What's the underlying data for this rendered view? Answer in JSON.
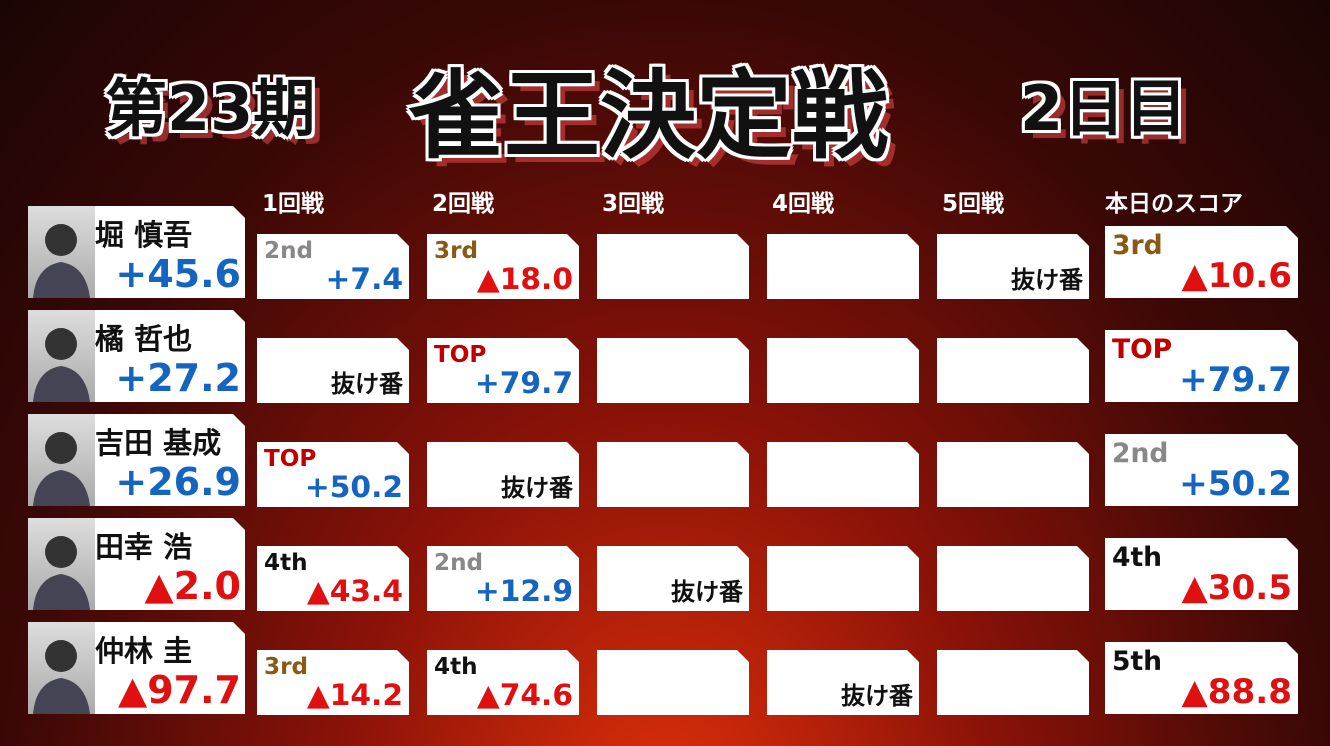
{
  "header": {
    "title_left": "第23期",
    "title_main": "雀王決定戦",
    "title_right": "2日目"
  },
  "table": {
    "columns": [
      "1回戦",
      "2回戦",
      "3回戦",
      "4回戦",
      "5回戦",
      "本日のスコア"
    ],
    "rows": [
      {
        "name": "堀 慎吾",
        "total": "+45.6",
        "total_color": "#1565c0",
        "games": [
          {
            "rank": "2nd",
            "rank_color": "#888888",
            "score": "+7.4",
            "score_color": "#1565c0"
          },
          {
            "rank": "3rd",
            "rank_color": "#8a5a14",
            "score": "▲18.0",
            "score_color": "#e01010"
          },
          null,
          null,
          {
            "note": "抜け番"
          }
        ],
        "today": {
          "rank": "3rd",
          "rank_color": "#8a5a14",
          "score": "▲10.6",
          "score_color": "#e01010"
        }
      },
      {
        "name": "橘 哲也",
        "total": "+27.2",
        "total_color": "#1565c0",
        "games": [
          {
            "note": "抜け番"
          },
          {
            "rank": "TOP",
            "rank_color": "#c00000",
            "score": "+79.7",
            "score_color": "#1565c0"
          },
          null,
          null,
          null
        ],
        "today": {
          "rank": "TOP",
          "rank_color": "#c00000",
          "score": "+79.7",
          "score_color": "#1565c0"
        }
      },
      {
        "name": "吉田 基成",
        "total": "+26.9",
        "total_color": "#1565c0",
        "games": [
          {
            "rank": "TOP",
            "rank_color": "#c00000",
            "score": "+50.2",
            "score_color": "#1565c0"
          },
          {
            "note": "抜け番"
          },
          null,
          null,
          null
        ],
        "today": {
          "rank": "2nd",
          "rank_color": "#888888",
          "score": "+50.2",
          "score_color": "#1565c0"
        }
      },
      {
        "name": "田幸 浩",
        "total": "▲2.0",
        "total_color": "#e01010",
        "games": [
          {
            "rank": "4th",
            "rank_color": "#111111",
            "score": "▲43.4",
            "score_color": "#e01010"
          },
          {
            "rank": "2nd",
            "rank_color": "#888888",
            "score": "+12.9",
            "score_color": "#1565c0"
          },
          {
            "note": "抜け番"
          },
          null,
          null
        ],
        "today": {
          "rank": "4th",
          "rank_color": "#111111",
          "score": "▲30.5",
          "score_color": "#e01010"
        }
      },
      {
        "name": "仲林 圭",
        "total": "▲97.7",
        "total_color": "#e01010",
        "games": [
          {
            "rank": "3rd",
            "rank_color": "#8a5a14",
            "score": "▲14.2",
            "score_color": "#e01010"
          },
          {
            "rank": "4th",
            "rank_color": "#111111",
            "score": "▲74.6",
            "score_color": "#e01010"
          },
          null,
          {
            "note": "抜け番"
          },
          null
        ],
        "today": {
          "rank": "5th",
          "rank_color": "#111111",
          "score": "▲88.8",
          "score_color": "#e01010"
        }
      }
    ]
  }
}
